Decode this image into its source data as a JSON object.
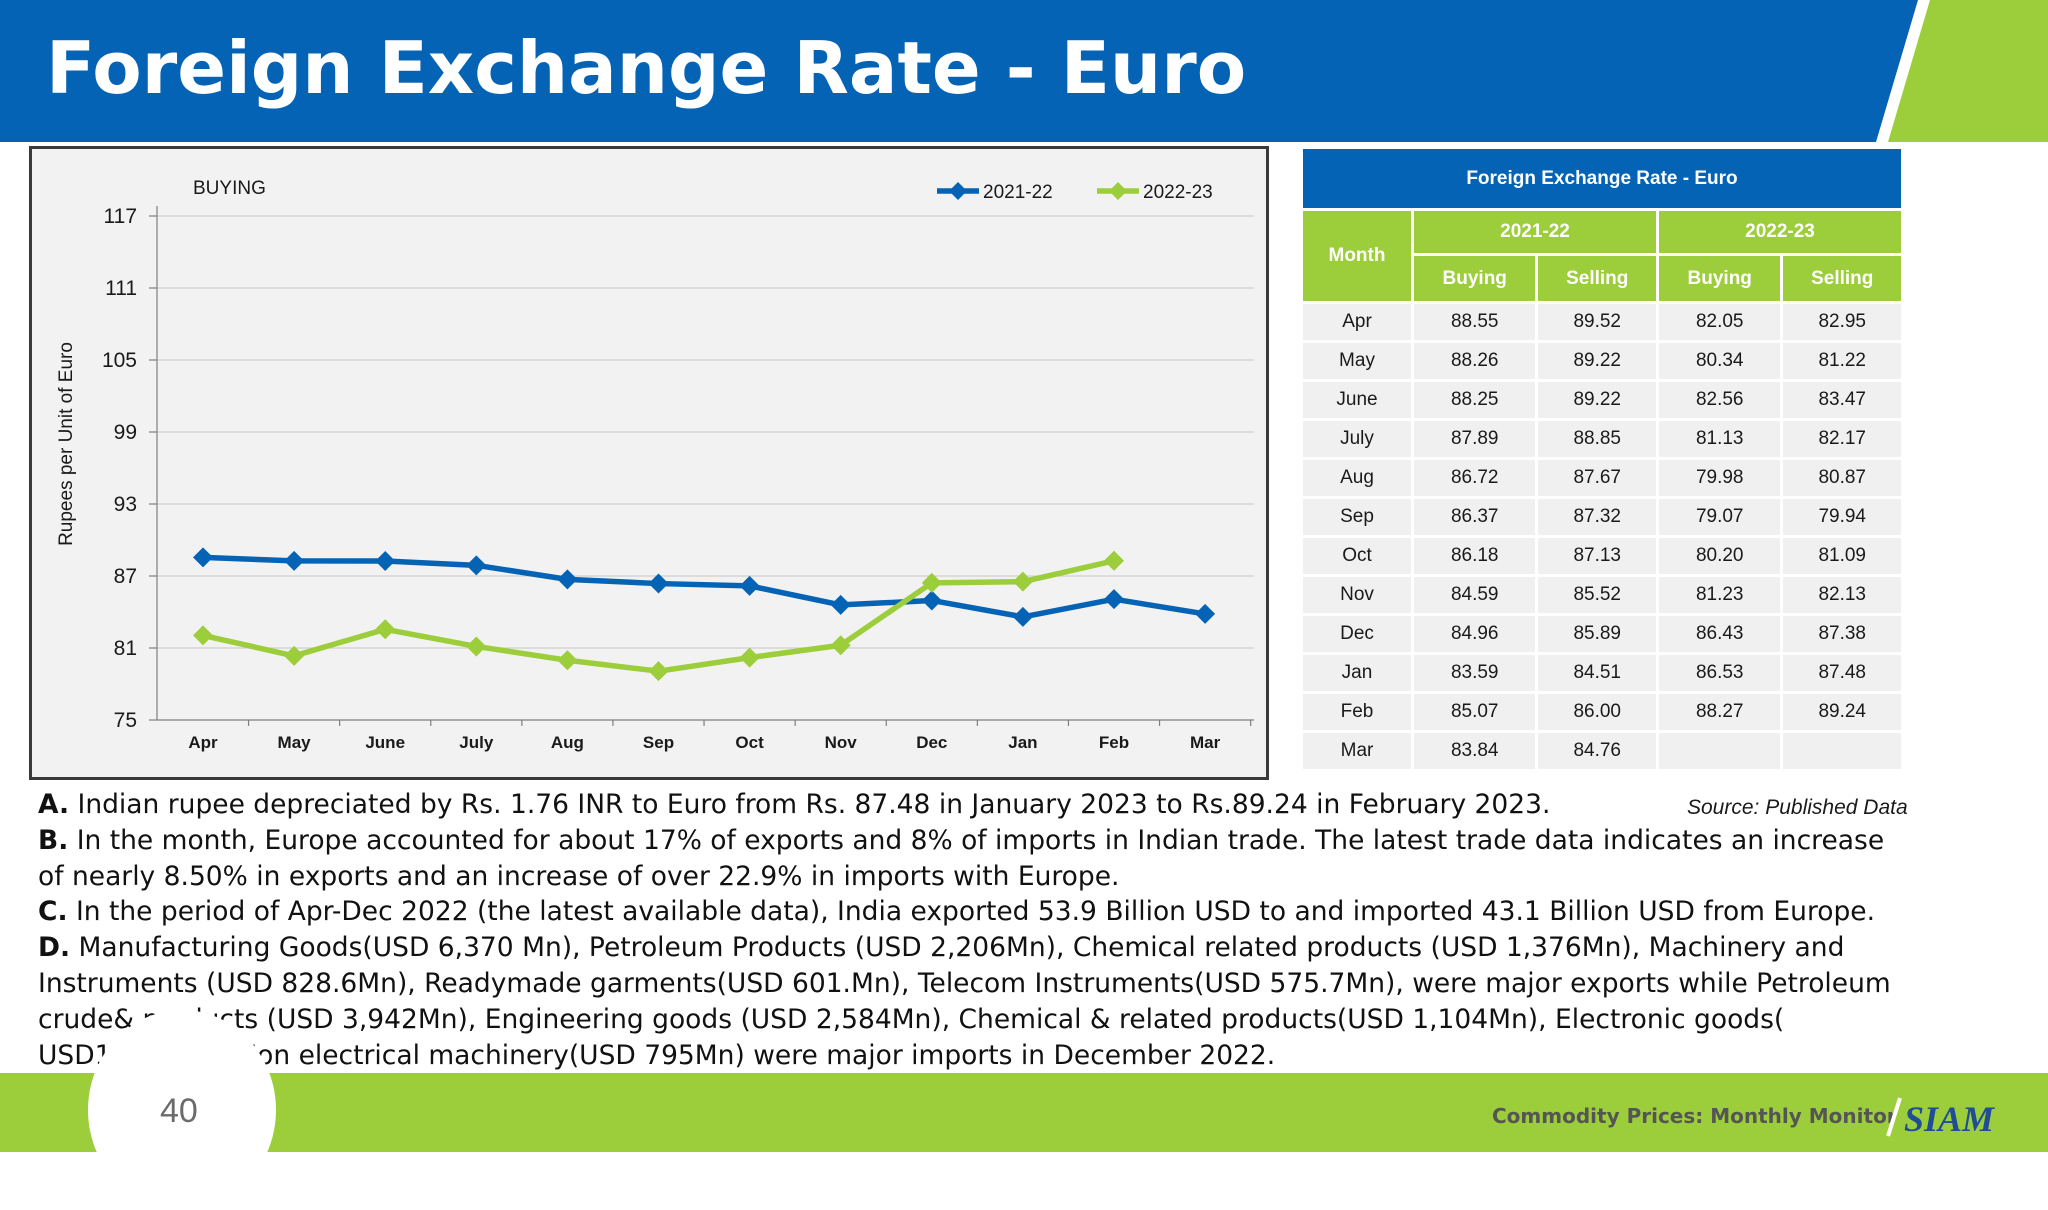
{
  "header": {
    "title": "Foreign Exchange Rate - Euro",
    "color": "#0563b5",
    "accent": "#9ccd3a"
  },
  "chart_data": {
    "type": "line",
    "subtitle": "BUYING",
    "ylabel": "Rupees per Unit of Euro",
    "xlabel": "",
    "categories": [
      "Apr",
      "May",
      "June",
      "July",
      "Aug",
      "Sep",
      "Oct",
      "Nov",
      "Dec",
      "Jan",
      "Feb",
      "Mar"
    ],
    "ylim": [
      75,
      117
    ],
    "yticks": [
      75,
      81,
      87,
      93,
      99,
      105,
      111,
      117
    ],
    "grid": true,
    "legend_position": "top-right",
    "series": [
      {
        "name": "2021-22",
        "color": "#0563b5",
        "values": [
          88.55,
          88.26,
          88.25,
          87.89,
          86.72,
          86.37,
          86.18,
          84.59,
          84.96,
          83.59,
          85.07,
          83.84
        ]
      },
      {
        "name": "2022-23",
        "color": "#9ccd3a",
        "values": [
          82.05,
          80.34,
          82.56,
          81.13,
          79.98,
          79.07,
          80.2,
          81.23,
          86.43,
          86.53,
          88.27,
          null
        ]
      }
    ]
  },
  "table": {
    "title": "Foreign Exchange Rate - Euro",
    "month_header": "Month",
    "year_headers": [
      "2021-22",
      "2022-23"
    ],
    "sub_headers": [
      "Buying",
      "Selling",
      "Buying",
      "Selling"
    ],
    "rows": [
      {
        "month": "Apr",
        "b1": "88.55",
        "s1": "89.52",
        "b2": "82.05",
        "s2": "82.95"
      },
      {
        "month": "May",
        "b1": "88.26",
        "s1": "89.22",
        "b2": "80.34",
        "s2": "81.22"
      },
      {
        "month": "June",
        "b1": "88.25",
        "s1": "89.22",
        "b2": "82.56",
        "s2": "83.47"
      },
      {
        "month": "July",
        "b1": "87.89",
        "s1": "88.85",
        "b2": "81.13",
        "s2": "82.17"
      },
      {
        "month": "Aug",
        "b1": "86.72",
        "s1": "87.67",
        "b2": "79.98",
        "s2": "80.87"
      },
      {
        "month": "Sep",
        "b1": "86.37",
        "s1": "87.32",
        "b2": "79.07",
        "s2": "79.94"
      },
      {
        "month": "Oct",
        "b1": "86.18",
        "s1": "87.13",
        "b2": "80.20",
        "s2": "81.09"
      },
      {
        "month": "Nov",
        "b1": "84.59",
        "s1": "85.52",
        "b2": "81.23",
        "s2": "82.13"
      },
      {
        "month": "Dec",
        "b1": "84.96",
        "s1": "85.89",
        "b2": "86.43",
        "s2": "87.38"
      },
      {
        "month": "Jan",
        "b1": "83.59",
        "s1": "84.51",
        "b2": "86.53",
        "s2": "87.48"
      },
      {
        "month": "Feb",
        "b1": "85.07",
        "s1": "86.00",
        "b2": "88.27",
        "s2": "89.24"
      },
      {
        "month": "Mar",
        "b1": "83.84",
        "s1": "84.76",
        "b2": "",
        "s2": ""
      }
    ]
  },
  "source": "Source: Published Data",
  "notes": [
    {
      "letter": "A.",
      "text": " Indian rupee depreciated by Rs. 1.76 INR to Euro from Rs. 87.48 in January 2023 to Rs.89.24 in February 2023."
    },
    {
      "letter": "B.",
      "text": " In the month, Europe accounted for about 17% of exports and 8% of imports in Indian trade. The latest trade data indicates an increase of nearly 8.50% in exports and an increase of over 22.9% in imports with Europe."
    },
    {
      "letter": "C.",
      "text": " In the period of Apr-Dec 2022 (the latest available data), India exported 53.9 Billion USD to and imported 43.1 Billion USD from Europe."
    },
    {
      "letter": "D.",
      "text": " Manufacturing Goods(USD 6,370 Mn), Petroleum Products (USD 2,206Mn), Chemical related products (USD 1,376Mn), Machinery and Instruments (USD 828.6Mn), Readymade garments(USD 601.Mn), Telecom Instruments(USD 575.7Mn), were major exports while Petroleum crude& products (USD 3,942Mn), Engineering goods (USD 2,584Mn), Chemical & related products(USD 1,104Mn), Electronic goods( USD1,091Mn), Non electrical machinery(USD 795Mn) were major imports in December 2022."
    }
  ],
  "footer": {
    "page_number": "40",
    "text": "Commodity Prices: Monthly Monitor",
    "logo_text": "SIAM"
  }
}
